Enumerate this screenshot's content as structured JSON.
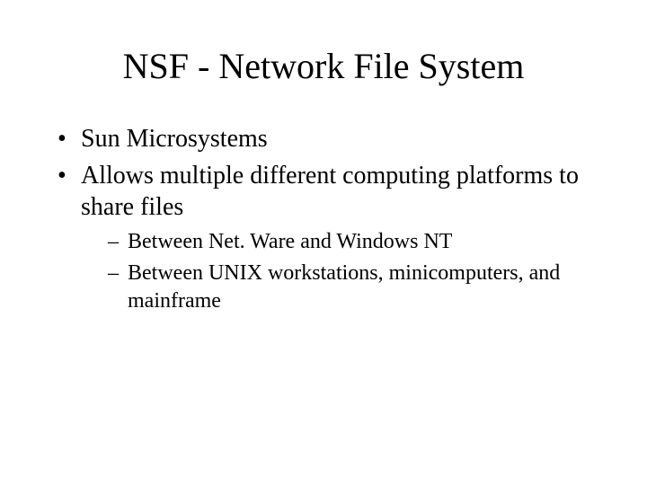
{
  "style": {
    "background_color": "#ffffff",
    "text_color": "#000000",
    "font_family": "Times New Roman",
    "title_fontsize": 40,
    "bullet_fontsize": 28,
    "subbullet_fontsize": 24,
    "bullet_marker": "•",
    "subbullet_marker": "–"
  },
  "title": "NSF - Network File System",
  "bullets": {
    "0": {
      "text": "Sun Microsystems"
    },
    "1": {
      "text": "Allows multiple different computing platforms to share files",
      "sub": {
        "0": "Between Net. Ware and Windows NT",
        "1": "Between UNIX workstations, minicomputers, and mainframe"
      }
    }
  }
}
